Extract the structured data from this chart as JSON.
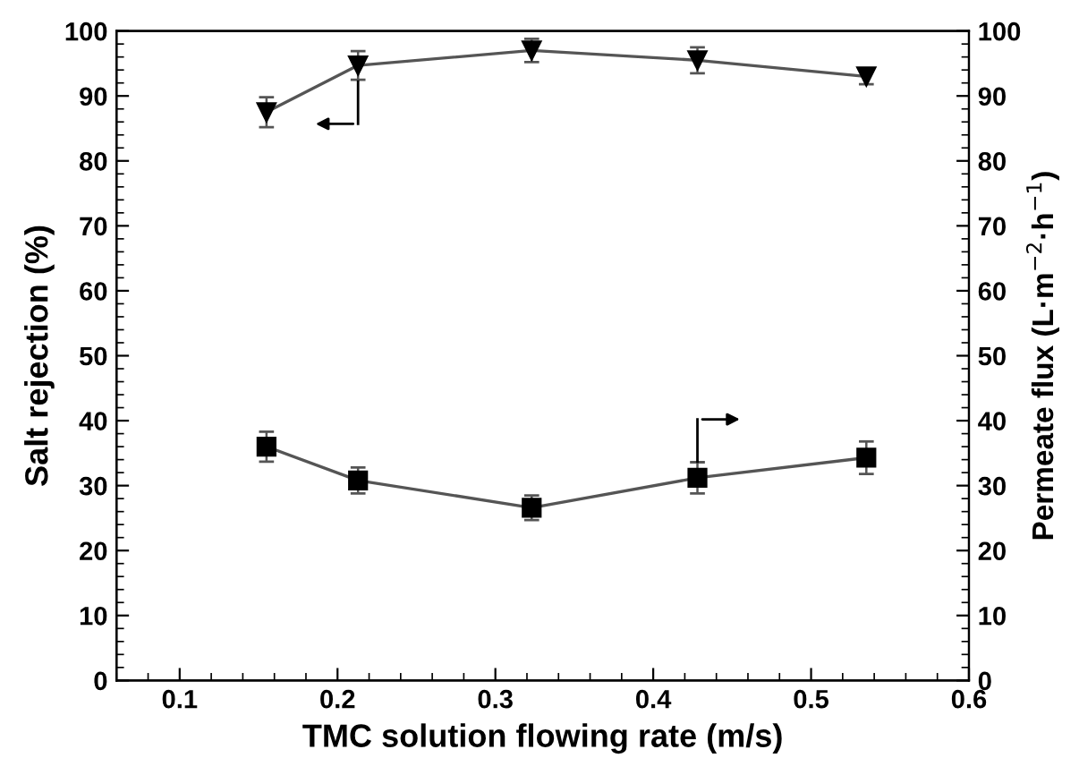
{
  "chart_data": {
    "type": "line",
    "xlabel": "TMC solution flowing rate (m/s)",
    "ylabel": "Salt rejection (%)",
    "y2label": "Permeate flux (L·m$^{−2}$·h$^{−1}$)",
    "xlim": [
      0.06,
      0.6
    ],
    "xticks": [
      0.1,
      0.2,
      0.3,
      0.4,
      0.5,
      0.6
    ],
    "ylim": [
      0,
      100
    ],
    "yticks": [
      0,
      10,
      20,
      30,
      40,
      50,
      60,
      70,
      80,
      90,
      100
    ],
    "y2lim": [
      0,
      100
    ],
    "y2ticks": [
      0,
      10,
      20,
      30,
      40,
      50,
      60,
      70,
      80,
      90,
      100
    ],
    "grid": false,
    "legend": false,
    "series": [
      {
        "color": "#000000",
        "marker": "triangle",
        "line_style": "solid",
        "x": [
          0.155,
          0.213,
          0.323,
          0.428,
          0.535
        ],
        "values": [
          87.5,
          94.7,
          97.0,
          95.5,
          93.0
        ],
        "errors": [
          2.3,
          2.2,
          1.8,
          2.0,
          1.2
        ]
      },
      {
        "color": "#000000",
        "marker": "square",
        "line_style": "solid",
        "axis": "y2",
        "x": [
          0.155,
          0.213,
          0.323,
          0.428,
          0.535
        ],
        "values": [
          36.0,
          30.8,
          26.6,
          31.2,
          34.3
        ],
        "errors": [
          2.3,
          2.0,
          1.9,
          2.4,
          2.5
        ]
      }
    ]
  }
}
